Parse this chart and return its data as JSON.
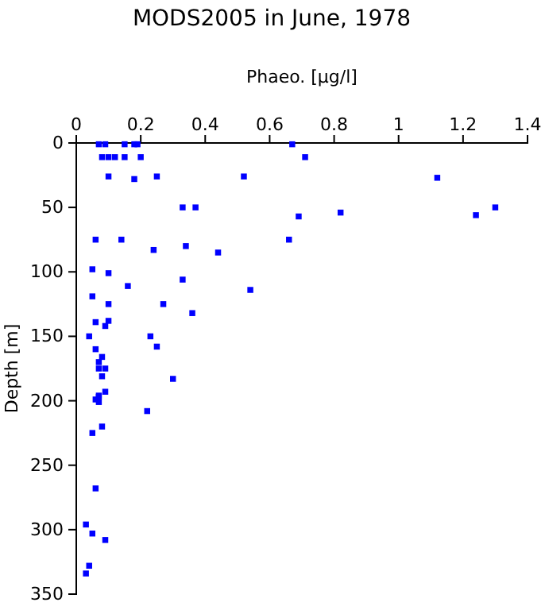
{
  "chart_data": {
    "type": "scatter",
    "title": "MODS2005 in June, 1978",
    "xlabel": "Phaeo. [µg/l]",
    "ylabel": "Depth [m]",
    "xlim": [
      0,
      1.4
    ],
    "xticks": [
      0,
      0.2,
      0.4,
      0.6,
      0.8,
      1,
      1.2,
      1.4
    ],
    "ylim": [
      350,
      0
    ],
    "yticks": [
      0,
      50,
      100,
      150,
      200,
      250,
      300,
      350
    ],
    "grid": false,
    "marker": "square",
    "series": [
      {
        "color": "#0000ff",
        "x": [
          0.07,
          0.09,
          0.15,
          0.18,
          0.19,
          0.67,
          0.08,
          0.1,
          0.12,
          0.15,
          0.2,
          0.71,
          0.1,
          0.18,
          0.25,
          0.52,
          1.12,
          0.33,
          0.37,
          0.82,
          0.69,
          1.24,
          1.3,
          0.06,
          0.14,
          0.66,
          0.24,
          0.34,
          0.44,
          0.05,
          0.1,
          0.16,
          0.33,
          0.54,
          0.05,
          0.1,
          0.27,
          0.36,
          0.06,
          0.1,
          0.09,
          0.04,
          0.23,
          0.25,
          0.06,
          0.08,
          0.07,
          0.07,
          0.09,
          0.08,
          0.3,
          0.07,
          0.09,
          0.06,
          0.07,
          0.07,
          0.22,
          0.08,
          0.05,
          0.06,
          0.03,
          0.05,
          0.09,
          0.04,
          0.03
        ],
        "values": [
          1,
          1,
          1,
          1,
          1,
          1,
          11,
          11,
          11,
          11,
          11,
          11,
          26,
          28,
          26,
          26,
          27,
          50,
          50,
          54,
          57,
          56,
          50,
          75,
          75,
          75,
          83,
          80,
          85,
          98,
          101,
          111,
          106,
          114,
          119,
          125,
          125,
          132,
          139,
          138,
          142,
          150,
          150,
          158,
          160,
          166,
          170,
          175,
          175,
          181,
          183,
          196,
          193,
          199,
          197,
          201,
          208,
          220,
          225,
          268,
          296,
          303,
          308,
          328,
          334
        ]
      }
    ]
  }
}
